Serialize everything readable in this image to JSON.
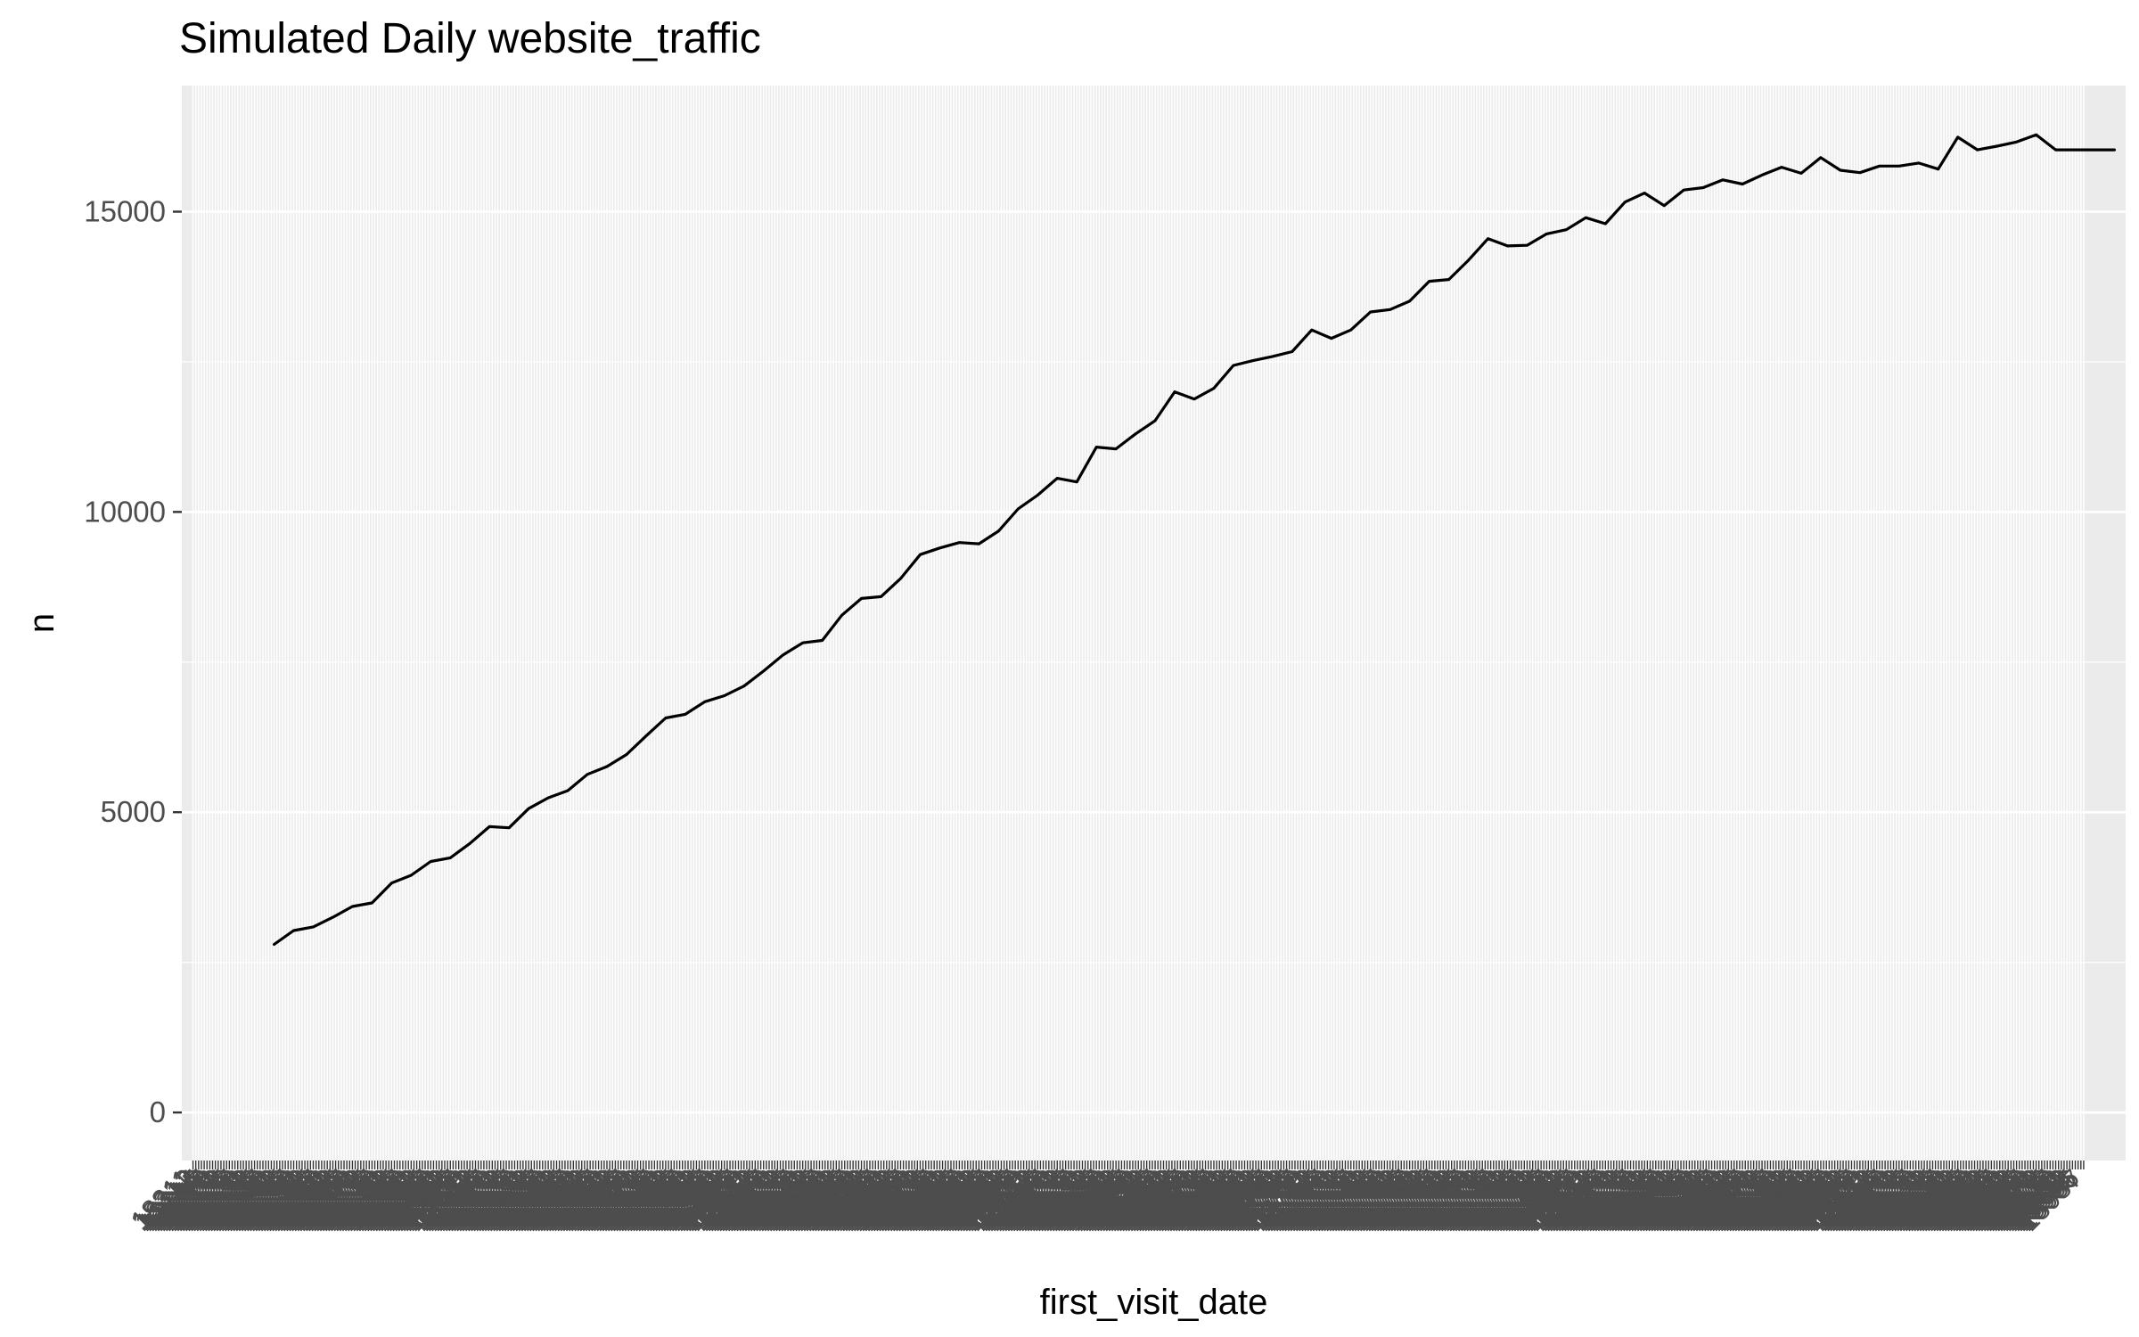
{
  "chart_data": {
    "type": "line",
    "title": "Simulated Daily website_traffic",
    "xlabel": "first_visit_date",
    "ylabel": "n",
    "x_start": 18311,
    "x_end": 18987,
    "xlim": [
      18307,
      19002
    ],
    "ylim": [
      -800,
      17100
    ],
    "ytick_values": [
      0,
      5000,
      10000,
      15000
    ],
    "ytick_labels": [
      "0",
      "5000",
      "10000",
      "15000"
    ],
    "grid": true,
    "legend": "none",
    "colors": {
      "panel_background": "#ebebeb",
      "grid_major": "#ffffff",
      "line": "#000000",
      "tick_text": "#4d4d4d",
      "axis_title": "#000000"
    },
    "series": [
      {
        "x": [
          18340,
          18347,
          18354,
          18361,
          18368,
          18375,
          18382,
          18389,
          18396,
          18403,
          18410,
          18417,
          18424,
          18431,
          18438,
          18445,
          18452,
          18459,
          18466,
          18473,
          18480,
          18487,
          18494,
          18501,
          18508,
          18515,
          18522,
          18529,
          18536,
          18543,
          18550,
          18557,
          18564,
          18571,
          18578,
          18585,
          18592,
          18599,
          18606,
          18613,
          18620,
          18627,
          18634,
          18641,
          18648,
          18655,
          18662,
          18669,
          18676,
          18683,
          18690,
          18697,
          18704,
          18711,
          18718,
          18725,
          18732,
          18739,
          18746,
          18753,
          18760,
          18767,
          18774,
          18781,
          18788,
          18795,
          18802,
          18809,
          18816,
          18823,
          18830,
          18837,
          18844,
          18851,
          18858,
          18865,
          18872,
          18879,
          18886,
          18893,
          18900,
          18907,
          18914,
          18921,
          18928,
          18935,
          18942,
          18949,
          18956,
          18963,
          18970,
          18977,
          18984,
          18991,
          18998
        ],
        "y": [
          2800,
          3030,
          3090,
          3250,
          3430,
          3490,
          3820,
          3950,
          4180,
          4240,
          4480,
          4760,
          4740,
          5060,
          5240,
          5360,
          5630,
          5760,
          5960,
          6270,
          6570,
          6630,
          6840,
          6940,
          7100,
          7350,
          7620,
          7820,
          7860,
          8280,
          8560,
          8590,
          8890,
          9290,
          9400,
          9490,
          9470,
          9680,
          10050,
          10280,
          10560,
          10500,
          11080,
          11050,
          11300,
          11520,
          12000,
          11880,
          12060,
          12440,
          12520,
          12590,
          12670,
          13030,
          12890,
          13030,
          13330,
          13370,
          13510,
          13840,
          13870,
          14190,
          14550,
          14430,
          14440,
          14630,
          14700,
          14900,
          14800,
          15160,
          15310,
          15100,
          15360,
          15400,
          15530,
          15460,
          15610,
          15740,
          15640,
          15900,
          15690,
          15650,
          15760,
          15760,
          15810,
          15710,
          16240,
          16030,
          16090,
          16160,
          16280,
          16030,
          16030,
          16030,
          16030
        ]
      }
    ]
  }
}
